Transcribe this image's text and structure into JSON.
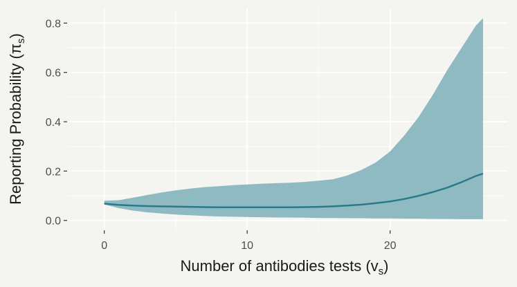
{
  "chart_data": {
    "type": "area",
    "xlabel": "Number of antibodies tests (v",
    "xlabel_sub": "s",
    "xlabel_end": ")",
    "ylabel": "Reporting Probability (π",
    "ylabel_sub": "s",
    "ylabel_end": ")",
    "xlim": [
      -2.6,
      28.2
    ],
    "ylim": [
      -0.04,
      0.86
    ],
    "x_ticks": [
      0,
      10,
      20
    ],
    "x_tick_labels": [
      "0",
      "10",
      "20"
    ],
    "y_ticks": [
      0.0,
      0.2,
      0.4,
      0.6,
      0.8
    ],
    "y_tick_labels": [
      "0.0",
      "0.2",
      "0.4",
      "0.6",
      "0.8"
    ],
    "grid": true,
    "colors": {
      "band": "#8fbac1",
      "line": "#2a7a8c",
      "grid": "#ffffff",
      "background": "#f4f4f0"
    },
    "series": [
      {
        "x": [
          0,
          1,
          2,
          3,
          4,
          5,
          6,
          7,
          8,
          9,
          10,
          11,
          12,
          13,
          14,
          15,
          16,
          17,
          18,
          19,
          20,
          21,
          22,
          23,
          24,
          25,
          26,
          26.5
        ],
        "mean": [
          0.068,
          0.063,
          0.06,
          0.058,
          0.057,
          0.056,
          0.055,
          0.054,
          0.053,
          0.053,
          0.053,
          0.053,
          0.053,
          0.053,
          0.054,
          0.055,
          0.057,
          0.06,
          0.064,
          0.07,
          0.077,
          0.087,
          0.1,
          0.115,
          0.133,
          0.155,
          0.18,
          0.19
        ],
        "lower": [
          0.065,
          0.05,
          0.04,
          0.033,
          0.028,
          0.024,
          0.021,
          0.018,
          0.016,
          0.015,
          0.014,
          0.013,
          0.012,
          0.012,
          0.011,
          0.01,
          0.01,
          0.009,
          0.009,
          0.008,
          0.008,
          0.007,
          0.007,
          0.006,
          0.006,
          0.005,
          0.005,
          0.005
        ],
        "upper": [
          0.08,
          0.082,
          0.092,
          0.103,
          0.113,
          0.122,
          0.129,
          0.135,
          0.139,
          0.143,
          0.146,
          0.149,
          0.151,
          0.153,
          0.156,
          0.161,
          0.167,
          0.182,
          0.205,
          0.235,
          0.28,
          0.345,
          0.42,
          0.51,
          0.61,
          0.7,
          0.79,
          0.82
        ]
      }
    ]
  }
}
